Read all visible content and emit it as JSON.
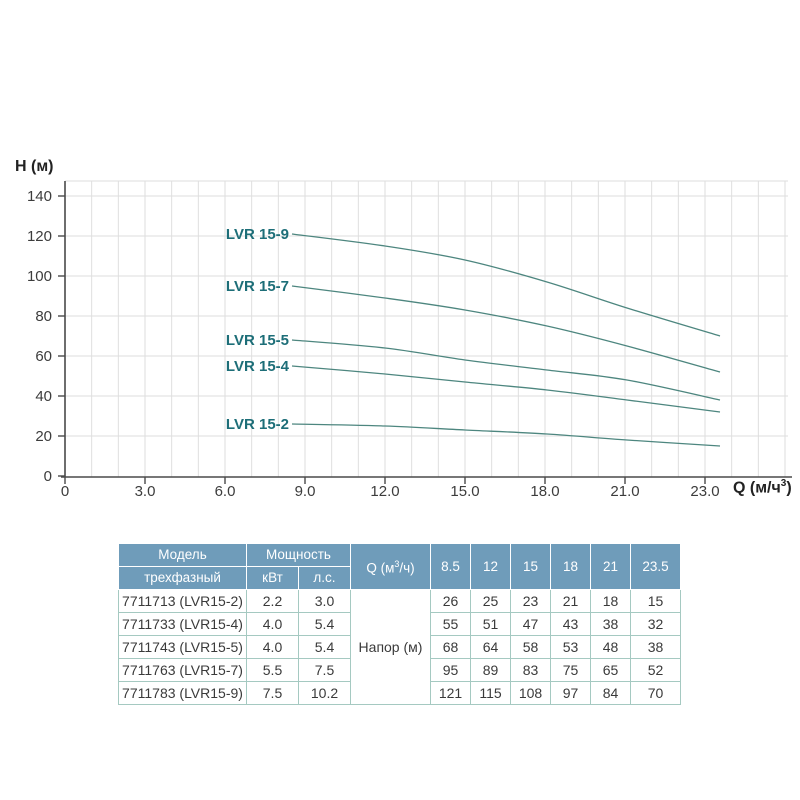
{
  "chart_data": {
    "type": "line",
    "title": "",
    "ylabel": "H (м)",
    "xlabel_parts": {
      "prefix": "Q (м/ч",
      "sup": "3",
      "suffix": ")"
    },
    "y_ticks": [
      "0",
      "20",
      "40",
      "60",
      "80",
      "100",
      "120",
      "140"
    ],
    "x_tick_labels": [
      "0",
      "3.0",
      "6.0",
      "9.0",
      "12.0",
      "15.0",
      "18.0",
      "21.0",
      "23.0"
    ],
    "ylim": [
      0,
      150
    ],
    "grid": true,
    "legend_position": "inline-labels",
    "x": [
      8.5,
      12,
      15,
      18,
      21,
      23.5
    ],
    "series": [
      {
        "name": "LVR 15-9",
        "values": [
          121,
          115,
          108,
          97,
          84,
          70
        ]
      },
      {
        "name": "LVR 15-7",
        "values": [
          95,
          89,
          83,
          75,
          65,
          52
        ]
      },
      {
        "name": "LVR 15-5",
        "values": [
          68,
          64,
          58,
          53,
          48,
          38
        ]
      },
      {
        "name": "LVR 15-4",
        "values": [
          55,
          51,
          47,
          43,
          38,
          32
        ]
      },
      {
        "name": "LVR 15-2",
        "values": [
          26,
          25,
          23,
          21,
          18,
          15
        ]
      }
    ],
    "colors": {
      "curve": "#4d867f",
      "curve_label": "#1d6e78",
      "grid": "#dedede",
      "axis": "#4a4a4a",
      "tick_text": "#3c3c3c"
    }
  },
  "table": {
    "header": {
      "model": "Модель",
      "model_sub": "трехфазный",
      "power": "Мощность",
      "power_kw": "кВт",
      "power_hp": "л.с.",
      "q_prefix": "Q (м",
      "q_sup": "3",
      "q_suffix": "/ч)",
      "q_cols": [
        "8.5",
        "12",
        "15",
        "18",
        "21",
        "23.5"
      ]
    },
    "body_label": "Напор (м)",
    "rows": [
      {
        "model": "7711713 (LVR15-2)",
        "kw": "2.2",
        "hp": "3.0",
        "values": [
          "26",
          "25",
          "23",
          "21",
          "18",
          "15"
        ]
      },
      {
        "model": "7711733 (LVR15-4)",
        "kw": "4.0",
        "hp": "5.4",
        "values": [
          "55",
          "51",
          "47",
          "43",
          "38",
          "32"
        ]
      },
      {
        "model": "7711743 (LVR15-5)",
        "kw": "4.0",
        "hp": "5.4",
        "values": [
          "68",
          "64",
          "58",
          "53",
          "48",
          "38"
        ]
      },
      {
        "model": "7711763 (LVR15-7)",
        "kw": "5.5",
        "hp": "7.5",
        "values": [
          "95",
          "89",
          "83",
          "75",
          "65",
          "52"
        ]
      },
      {
        "model": "7711783 (LVR15-9)",
        "kw": "7.5",
        "hp": "10.2",
        "values": [
          "121",
          "115",
          "108",
          "97",
          "84",
          "70"
        ]
      }
    ],
    "colors": {
      "header_bg": "#6f9cba",
      "header_text": "#ffffff",
      "border": "#a5c9c1",
      "cell_text": "#3a3a3a"
    }
  }
}
